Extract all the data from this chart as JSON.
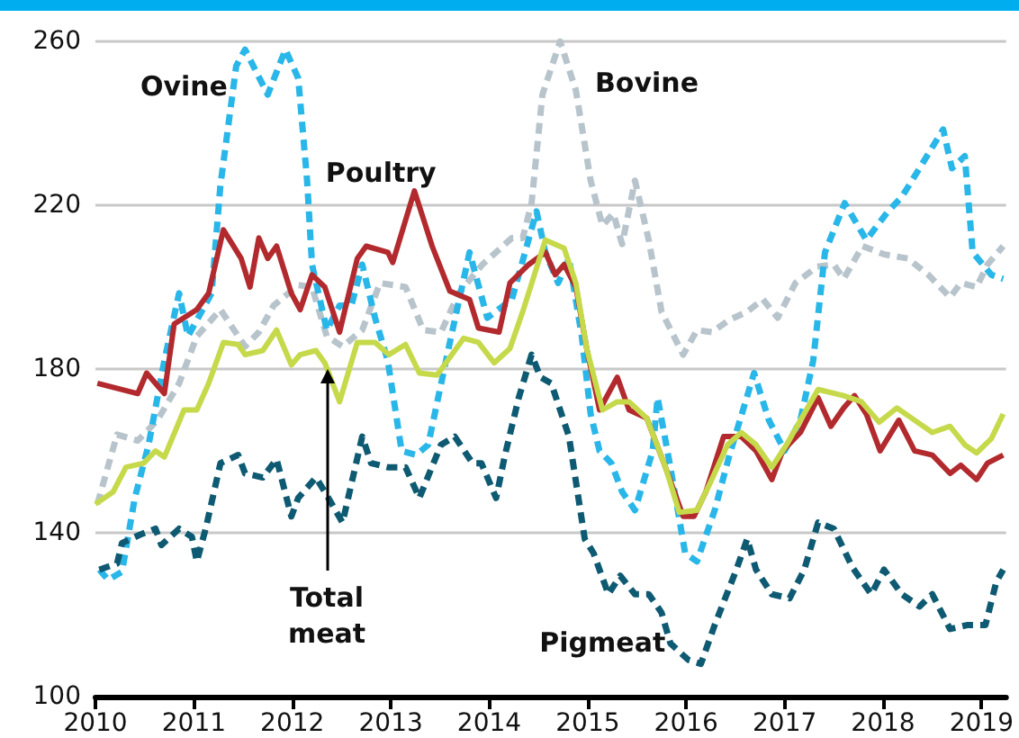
{
  "chart_data": {
    "type": "line",
    "xlim": [
      2010,
      2019.25
    ],
    "xticks": [
      2010,
      2011,
      2012,
      2013,
      2014,
      2015,
      2016,
      2017,
      2018,
      2019
    ],
    "ylim": [
      100,
      260
    ],
    "yticks": [
      100,
      140,
      180,
      220,
      260
    ],
    "grid": "y",
    "legend": false,
    "marker": "none",
    "series": [
      {
        "name": "Bovine",
        "color": "#b8c4cc",
        "line_style": "dashed",
        "x": [
          2010.02,
          2010.22,
          2010.43,
          2010.63,
          2010.85,
          2011.03,
          2011.27,
          2011.52,
          2011.66,
          2011.81,
          2012.06,
          2012.2,
          2012.35,
          2012.51,
          2012.71,
          2012.89,
          2013.15,
          2013.33,
          2013.51,
          2013.69,
          2013.93,
          2014.23,
          2014.34,
          2014.43,
          2014.54,
          2014.72,
          2014.88,
          2015.03,
          2015.15,
          2015.26,
          2015.35,
          2015.48,
          2015.62,
          2015.75,
          2015.97,
          2016.11,
          2016.26,
          2016.44,
          2016.62,
          2016.78,
          2016.93,
          2017.11,
          2017.33,
          2017.5,
          2017.6,
          2017.79,
          2018.01,
          2018.25,
          2018.46,
          2018.68,
          2018.79,
          2018.95,
          2019.06,
          2019.22
        ],
        "values": [
          147,
          164,
          162.5,
          167.5,
          176.5,
          188,
          194.5,
          185.5,
          189,
          195.5,
          200.5,
          200,
          188,
          185.5,
          189.5,
          201,
          200,
          189.5,
          189,
          198.5,
          205.5,
          212,
          212,
          220.5,
          247,
          260,
          248,
          226,
          215,
          218,
          210.5,
          226,
          211.5,
          194,
          183.5,
          189.5,
          189,
          192,
          194,
          197,
          192.5,
          201,
          205,
          205.5,
          202,
          210,
          208,
          207,
          203,
          197.5,
          201,
          200,
          205.5,
          210
        ]
      },
      {
        "name": "Ovine",
        "color": "#29b6e8",
        "line_style": "dashed",
        "x": [
          2010.04,
          2010.13,
          2010.27,
          2010.4,
          2010.54,
          2010.7,
          2010.85,
          2010.94,
          2011.18,
          2011.27,
          2011.43,
          2011.52,
          2011.75,
          2011.93,
          2012.06,
          2012.15,
          2012.2,
          2012.35,
          2012.48,
          2012.6,
          2012.71,
          2012.84,
          2012.97,
          2013.11,
          2013.26,
          2013.38,
          2013.6,
          2013.8,
          2013.98,
          2014.23,
          2014.48,
          2014.57,
          2014.7,
          2014.81,
          2014.94,
          2015.03,
          2015.12,
          2015.24,
          2015.35,
          2015.48,
          2015.66,
          2015.71,
          2015.84,
          2015.99,
          2016.11,
          2016.29,
          2016.44,
          2016.69,
          2016.84,
          2017.0,
          2017.16,
          2017.29,
          2017.41,
          2017.61,
          2017.83,
          2018.05,
          2018.19,
          2018.37,
          2018.61,
          2018.7,
          2018.83,
          2018.91,
          2019.1,
          2019.22
        ],
        "values": [
          131,
          128.5,
          130.5,
          148.5,
          161.5,
          182,
          198.5,
          188,
          198.5,
          225,
          254,
          258,
          247,
          258,
          251,
          226,
          205.5,
          189.5,
          195.5,
          195.5,
          205.5,
          192.5,
          182,
          160,
          159,
          161.5,
          186.5,
          208.5,
          192.5,
          197,
          218.5,
          208.5,
          201,
          207,
          188,
          169,
          160,
          157,
          150,
          145.5,
          160,
          173,
          156,
          135,
          133,
          145.5,
          159,
          179,
          167.5,
          160,
          167.5,
          182,
          208.5,
          220.5,
          211.5,
          218.5,
          222,
          229,
          238.5,
          229,
          232,
          208.5,
          203,
          202
        ]
      },
      {
        "name": "Poultry",
        "color": "#b22a2e",
        "line_style": "solid",
        "x": [
          2010.02,
          2010.43,
          2010.52,
          2010.7,
          2010.8,
          2011.03,
          2011.15,
          2011.3,
          2011.48,
          2011.57,
          2011.66,
          2011.75,
          2011.84,
          2011.99,
          2012.08,
          2012.2,
          2012.33,
          2012.48,
          2012.66,
          2012.75,
          2012.97,
          2013.02,
          2013.24,
          2013.42,
          2013.6,
          2013.8,
          2013.89,
          2014.1,
          2014.21,
          2014.4,
          2014.57,
          2014.67,
          2014.76,
          2014.88,
          2014.99,
          2015.12,
          2015.3,
          2015.42,
          2015.6,
          2015.79,
          2015.97,
          2016.08,
          2016.2,
          2016.38,
          2016.56,
          2016.71,
          2016.87,
          2016.98,
          2017.16,
          2017.34,
          2017.47,
          2017.6,
          2017.71,
          2017.83,
          2017.97,
          2018.16,
          2018.32,
          2018.5,
          2018.68,
          2018.79,
          2018.95,
          2019.06,
          2019.22
        ],
        "values": [
          176.5,
          174,
          179,
          174,
          191,
          194.5,
          198.5,
          214,
          207,
          200,
          212,
          207,
          210,
          198.5,
          194.5,
          203,
          200,
          189,
          207,
          210,
          208.5,
          206,
          223.5,
          210,
          199,
          197,
          190,
          189,
          201,
          205.5,
          208.5,
          203,
          205.5,
          200,
          185,
          170,
          178,
          170,
          168,
          156,
          144,
          144,
          150,
          163.5,
          163.5,
          160,
          153,
          160,
          164.5,
          173,
          166,
          170.5,
          173.5,
          169,
          160,
          167.5,
          160,
          159,
          154.5,
          156.5,
          153,
          157,
          159
        ]
      },
      {
        "name": "Total meat",
        "color": "#c6d94a",
        "line_style": "solid",
        "x": [
          2010.0,
          2010.18,
          2010.31,
          2010.49,
          2010.61,
          2010.7,
          2010.9,
          2011.03,
          2011.15,
          2011.3,
          2011.45,
          2011.52,
          2011.7,
          2011.84,
          2011.99,
          2012.08,
          2012.24,
          2012.33,
          2012.48,
          2012.66,
          2012.84,
          2012.98,
          2013.15,
          2013.29,
          2013.47,
          2013.74,
          2013.89,
          2014.05,
          2014.21,
          2014.34,
          2014.57,
          2014.76,
          2014.88,
          2014.99,
          2015.15,
          2015.3,
          2015.42,
          2015.6,
          2015.79,
          2015.93,
          2016.11,
          2016.26,
          2016.42,
          2016.56,
          2016.71,
          2016.87,
          2017.02,
          2017.16,
          2017.34,
          2017.6,
          2017.78,
          2017.96,
          2018.14,
          2018.32,
          2018.5,
          2018.68,
          2018.83,
          2018.95,
          2019.1,
          2019.22
        ],
        "values": [
          147,
          150,
          156,
          157,
          160,
          158.5,
          170,
          170,
          176.5,
          186.5,
          186,
          183.5,
          184.5,
          189.5,
          181,
          183.5,
          184.5,
          181.5,
          172,
          186.5,
          186.5,
          183.5,
          186,
          179,
          178.5,
          187.5,
          186.5,
          181.5,
          185,
          194,
          211.5,
          209.5,
          201,
          185,
          170,
          172,
          172,
          168,
          156,
          145,
          145.5,
          153,
          161.5,
          164.5,
          161.5,
          156,
          161.5,
          167.5,
          175,
          173.5,
          172,
          167,
          170.5,
          167.5,
          164.5,
          166,
          161.5,
          159.5,
          163,
          169
        ]
      },
      {
        "name": "Pigmeat",
        "color": "#0e5a72",
        "line_style": "dashed",
        "x": [
          2010.04,
          2010.22,
          2010.27,
          2010.45,
          2010.61,
          2010.67,
          2010.85,
          2010.98,
          2011.03,
          2011.12,
          2011.27,
          2011.45,
          2011.52,
          2011.7,
          2011.84,
          2011.99,
          2012.06,
          2012.24,
          2012.33,
          2012.51,
          2012.71,
          2012.8,
          2012.97,
          2013.15,
          2013.29,
          2013.51,
          2013.65,
          2013.83,
          2013.92,
          2014.07,
          2014.16,
          2014.3,
          2014.43,
          2014.52,
          2014.63,
          2014.81,
          2014.97,
          2015.06,
          2015.21,
          2015.33,
          2015.48,
          2015.62,
          2015.75,
          2015.84,
          2016.02,
          2016.15,
          2016.29,
          2016.51,
          2016.62,
          2016.71,
          2016.87,
          2017.05,
          2017.2,
          2017.34,
          2017.5,
          2017.69,
          2017.88,
          2018.01,
          2018.19,
          2018.37,
          2018.5,
          2018.68,
          2018.86,
          2019.04,
          2019.15,
          2019.22
        ],
        "values": [
          131,
          132.5,
          137.5,
          139.5,
          141,
          137,
          141,
          139,
          133,
          141,
          157,
          159,
          154.5,
          153.5,
          158,
          144,
          148.5,
          153.5,
          150,
          142.5,
          163.5,
          157,
          156,
          156,
          148.5,
          161.5,
          163.5,
          157,
          157,
          148.5,
          159,
          173,
          183.5,
          178,
          176.5,
          163.5,
          138.5,
          135,
          125,
          129.5,
          125,
          125,
          120.5,
          113,
          109,
          108,
          117.5,
          131,
          138.5,
          131,
          125,
          124,
          131,
          142.5,
          141,
          131.5,
          125,
          131,
          125,
          122,
          125,
          116.5,
          117.5,
          117.5,
          128,
          131
        ]
      }
    ]
  }
}
